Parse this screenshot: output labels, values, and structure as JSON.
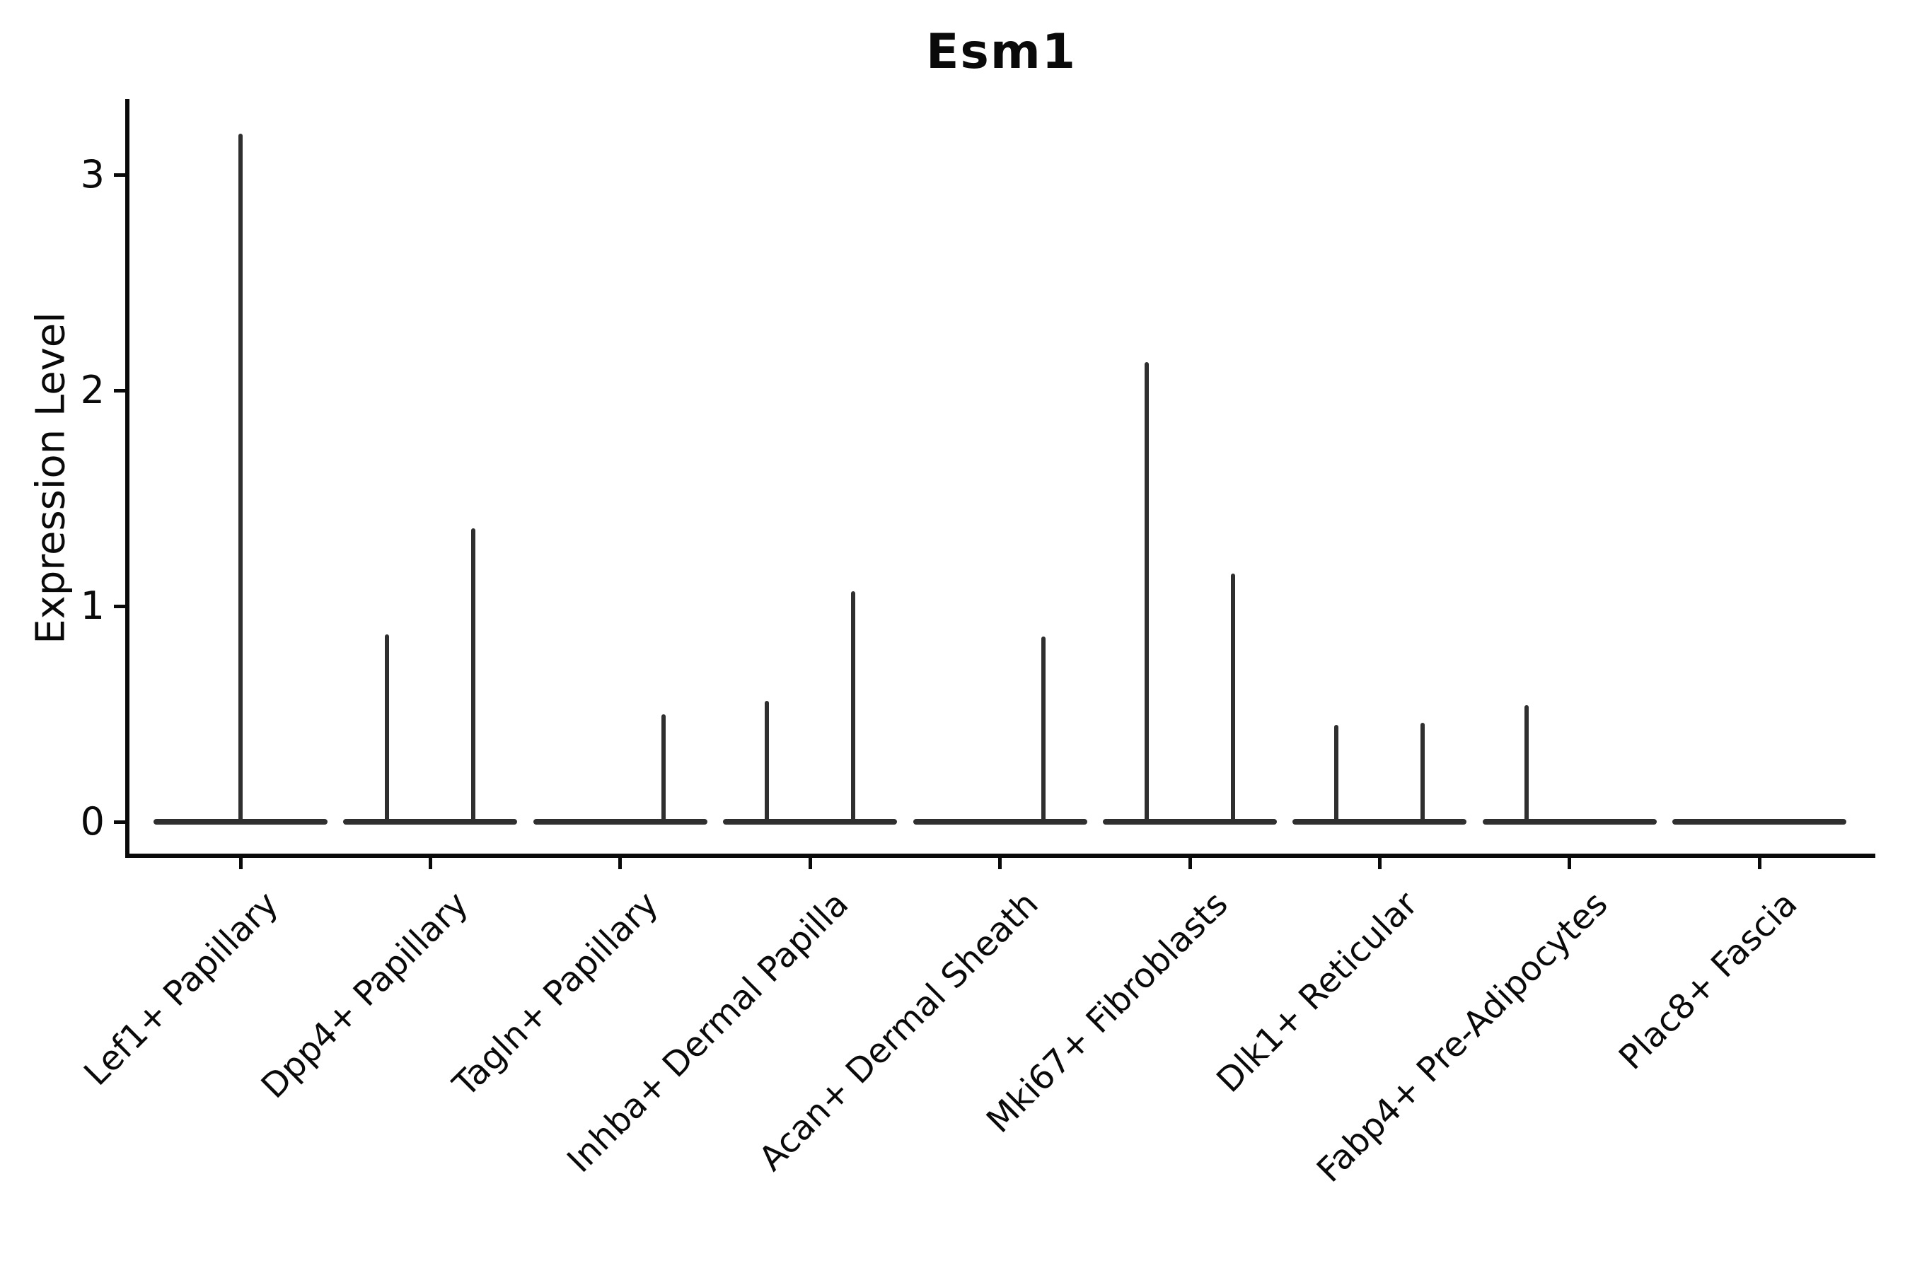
{
  "title": "Esm1",
  "colors": {
    "background": "#ffffff",
    "axis": "#0a0a0a",
    "text": "#0a0a0a",
    "violin": "#2f2f2f"
  },
  "chart_data": {
    "type": "violin",
    "title": "Esm1",
    "xlabel": "",
    "ylabel": "Expression Level",
    "ylim": [
      -0.15,
      3.35
    ],
    "yticks": [
      0,
      1,
      2,
      3
    ],
    "grid": false,
    "legend": "none",
    "baseline_value": 0,
    "categories": [
      "Lef1+ Papillary",
      "Dpp4+ Papillary",
      "Tagln+ Papillary",
      "Inhba+ Dermal Papilla",
      "Acan+ Dermal Sheath",
      "Mki67+ Fibroblasts",
      "Dlk1+ Reticular",
      "Fabp4+ Pre-Adipocytes",
      "Plac8+ Fascia"
    ],
    "violins": [
      {
        "category": "Lef1+ Papillary",
        "spikes": [
          {
            "side": "center",
            "max_expression": 3.19
          }
        ]
      },
      {
        "category": "Dpp4+ Papillary",
        "spikes": [
          {
            "side": "left",
            "max_expression": 0.87
          },
          {
            "side": "right",
            "max_expression": 1.36
          }
        ]
      },
      {
        "category": "Tagln+ Papillary",
        "spikes": [
          {
            "side": "right",
            "max_expression": 0.5
          }
        ]
      },
      {
        "category": "Inhba+ Dermal Papilla",
        "spikes": [
          {
            "side": "left",
            "max_expression": 0.56
          },
          {
            "side": "right",
            "max_expression": 1.07
          }
        ]
      },
      {
        "category": "Acan+ Dermal Sheath",
        "spikes": [
          {
            "side": "right",
            "max_expression": 0.86
          }
        ]
      },
      {
        "category": "Mki67+ Fibroblasts",
        "spikes": [
          {
            "side": "left",
            "max_expression": 2.13
          },
          {
            "side": "right",
            "max_expression": 1.15
          }
        ]
      },
      {
        "category": "Dlk1+ Reticular",
        "spikes": [
          {
            "side": "left",
            "max_expression": 0.45
          },
          {
            "side": "right",
            "max_expression": 0.46
          }
        ]
      },
      {
        "category": "Fabp4+ Pre-Adipocytes",
        "spikes": [
          {
            "side": "left",
            "max_expression": 0.54
          }
        ]
      },
      {
        "category": "Plac8+ Fascia",
        "spikes": []
      }
    ]
  }
}
